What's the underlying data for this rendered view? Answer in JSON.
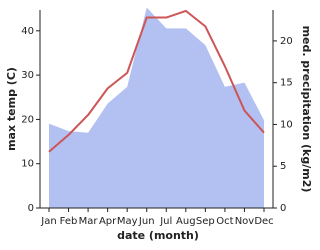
{
  "chart_data": {
    "type": "area-line",
    "x_label": "date (month)",
    "y_label": "max temp (C)",
    "y2_label": "med. precipitation (kg/m2)",
    "categories": [
      "Jan",
      "Feb",
      "Mar",
      "Apr",
      "May",
      "Jun",
      "Jul",
      "Aug",
      "Sep",
      "Oct",
      "Nov",
      "Dec"
    ],
    "series": [
      {
        "name": "max temp",
        "color": "#cc5555",
        "axis": "y",
        "values": [
          12.7,
          16.5,
          21,
          27,
          30.5,
          43,
          43,
          44.5,
          41,
          32,
          22,
          17
        ]
      },
      {
        "name": "med. precipitation",
        "color": "#b3c1f2",
        "axis": "y2",
        "values": [
          10.1,
          9.2,
          9.0,
          12.5,
          14.5,
          24,
          21.5,
          21.5,
          19.5,
          14.5,
          15,
          10.5
        ]
      }
    ],
    "ylim": [
      0,
      44.7
    ],
    "yticks": [
      0,
      10,
      20,
      30,
      40
    ],
    "y2lim": [
      0,
      23.7
    ],
    "y2ticks": [
      0,
      5,
      10,
      15,
      20
    ]
  }
}
